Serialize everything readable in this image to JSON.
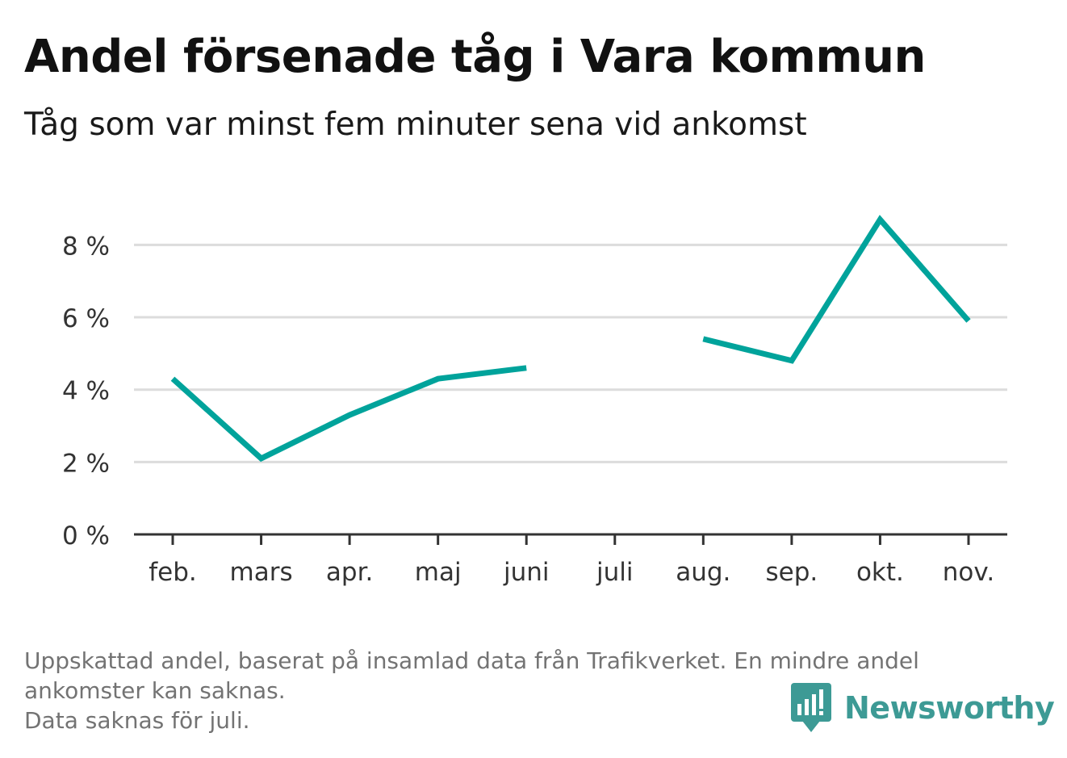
{
  "header": {
    "title": "Andel försenade tåg i Vara kommun",
    "subtitle": "Tåg som var minst fem minuter sena vid ankomst"
  },
  "chart_data": {
    "type": "line",
    "categories": [
      "feb.",
      "mars",
      "apr.",
      "maj",
      "juni",
      "juli",
      "aug.",
      "sep.",
      "okt.",
      "nov."
    ],
    "series": [
      {
        "values": [
          4.3,
          2.1,
          3.3,
          4.3,
          4.6,
          null,
          5.4,
          4.8,
          8.7,
          5.9
        ],
        "color": "#00a39b"
      }
    ],
    "y_ticks": [
      0,
      2,
      4,
      6,
      8
    ],
    "y_tick_labels": [
      "0 %",
      "2 %",
      "4 %",
      "6 %",
      "8 %"
    ],
    "ylim": [
      0,
      8.7
    ],
    "grid": true,
    "xlabel": "",
    "ylabel": ""
  },
  "footer": {
    "note_line1": "Uppskattad andel, baserat på insamlad data från Trafikverket. En mindre andel",
    "note_line2": "ankomster kan saknas.",
    "note_line3": "Data saknas för juli.",
    "brand": "Newsworthy",
    "brand_icon": "bar-chart-speech-bubble-icon",
    "brand_color": "#3d9a95"
  }
}
